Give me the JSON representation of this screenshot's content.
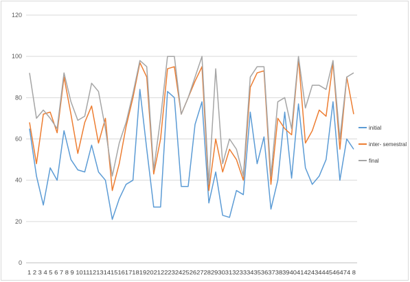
{
  "chart_data": {
    "type": "line",
    "title": "",
    "xlabel": "",
    "ylabel": "",
    "ylim": [
      0,
      120
    ],
    "yticks": [
      0,
      20,
      40,
      60,
      80,
      100,
      120
    ],
    "grid": true,
    "legend_position": "right",
    "x": [
      1,
      2,
      3,
      4,
      5,
      6,
      7,
      8,
      9,
      10,
      11,
      12,
      13,
      14,
      15,
      16,
      17,
      18,
      19,
      20,
      21,
      22,
      23,
      24,
      25,
      26,
      27,
      28,
      29,
      30,
      31,
      32,
      33,
      34,
      35,
      36,
      37,
      38,
      39,
      40,
      41,
      42,
      43,
      44,
      45,
      46,
      47,
      48
    ],
    "x_tick_text": "1 2 3 4 5 6 7 8 9 10111213141516171819202122232425262728293031323334353637383940414243444546474 8",
    "series": [
      {
        "name": "initial",
        "color": "#5b9bd5",
        "values": [
          65,
          42,
          28,
          46,
          40,
          64,
          50,
          45,
          44,
          57,
          44,
          40,
          21,
          31,
          38,
          40,
          84,
          55,
          27,
          27,
          83,
          80,
          37,
          37,
          67,
          78,
          29,
          44,
          23,
          22,
          35,
          33,
          73,
          48,
          61,
          26,
          40,
          73,
          41,
          77,
          46,
          38,
          42,
          50,
          78,
          40,
          60,
          55
        ]
      },
      {
        "name": "inter- semestral",
        "color": "#ed7d31",
        "values": [
          68,
          48,
          72,
          73,
          63,
          90,
          72,
          53,
          68,
          76,
          58,
          70,
          35,
          48,
          66,
          80,
          97,
          90,
          43,
          60,
          94,
          95,
          72,
          80,
          88,
          95,
          35,
          60,
          44,
          55,
          50,
          40,
          85,
          92,
          93,
          38,
          70,
          65,
          62,
          99,
          58,
          64,
          74,
          71,
          97,
          55,
          90,
          72
        ]
      },
      {
        "name": "final",
        "color": "#a5a5a5",
        "values": [
          92,
          70,
          74,
          70,
          65,
          92,
          78,
          69,
          71,
          87,
          83,
          65,
          42,
          58,
          68,
          82,
          98,
          95,
          45,
          70,
          100,
          100,
          72,
          80,
          90,
          100,
          38,
          94,
          48,
          60,
          55,
          42,
          90,
          95,
          95,
          42,
          78,
          80,
          65,
          100,
          75,
          86,
          86,
          84,
          98,
          60,
          90,
          92
        ]
      }
    ]
  }
}
